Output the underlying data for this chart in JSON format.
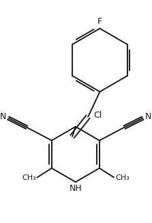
{
  "bg_color": "#ffffff",
  "line_color": "#1a1a1a",
  "line_width": 1.4,
  "figsize": [
    2.23,
    3.26
  ],
  "dpi": 100,
  "xlim": [
    0,
    223
  ],
  "ylim": [
    0,
    326
  ]
}
